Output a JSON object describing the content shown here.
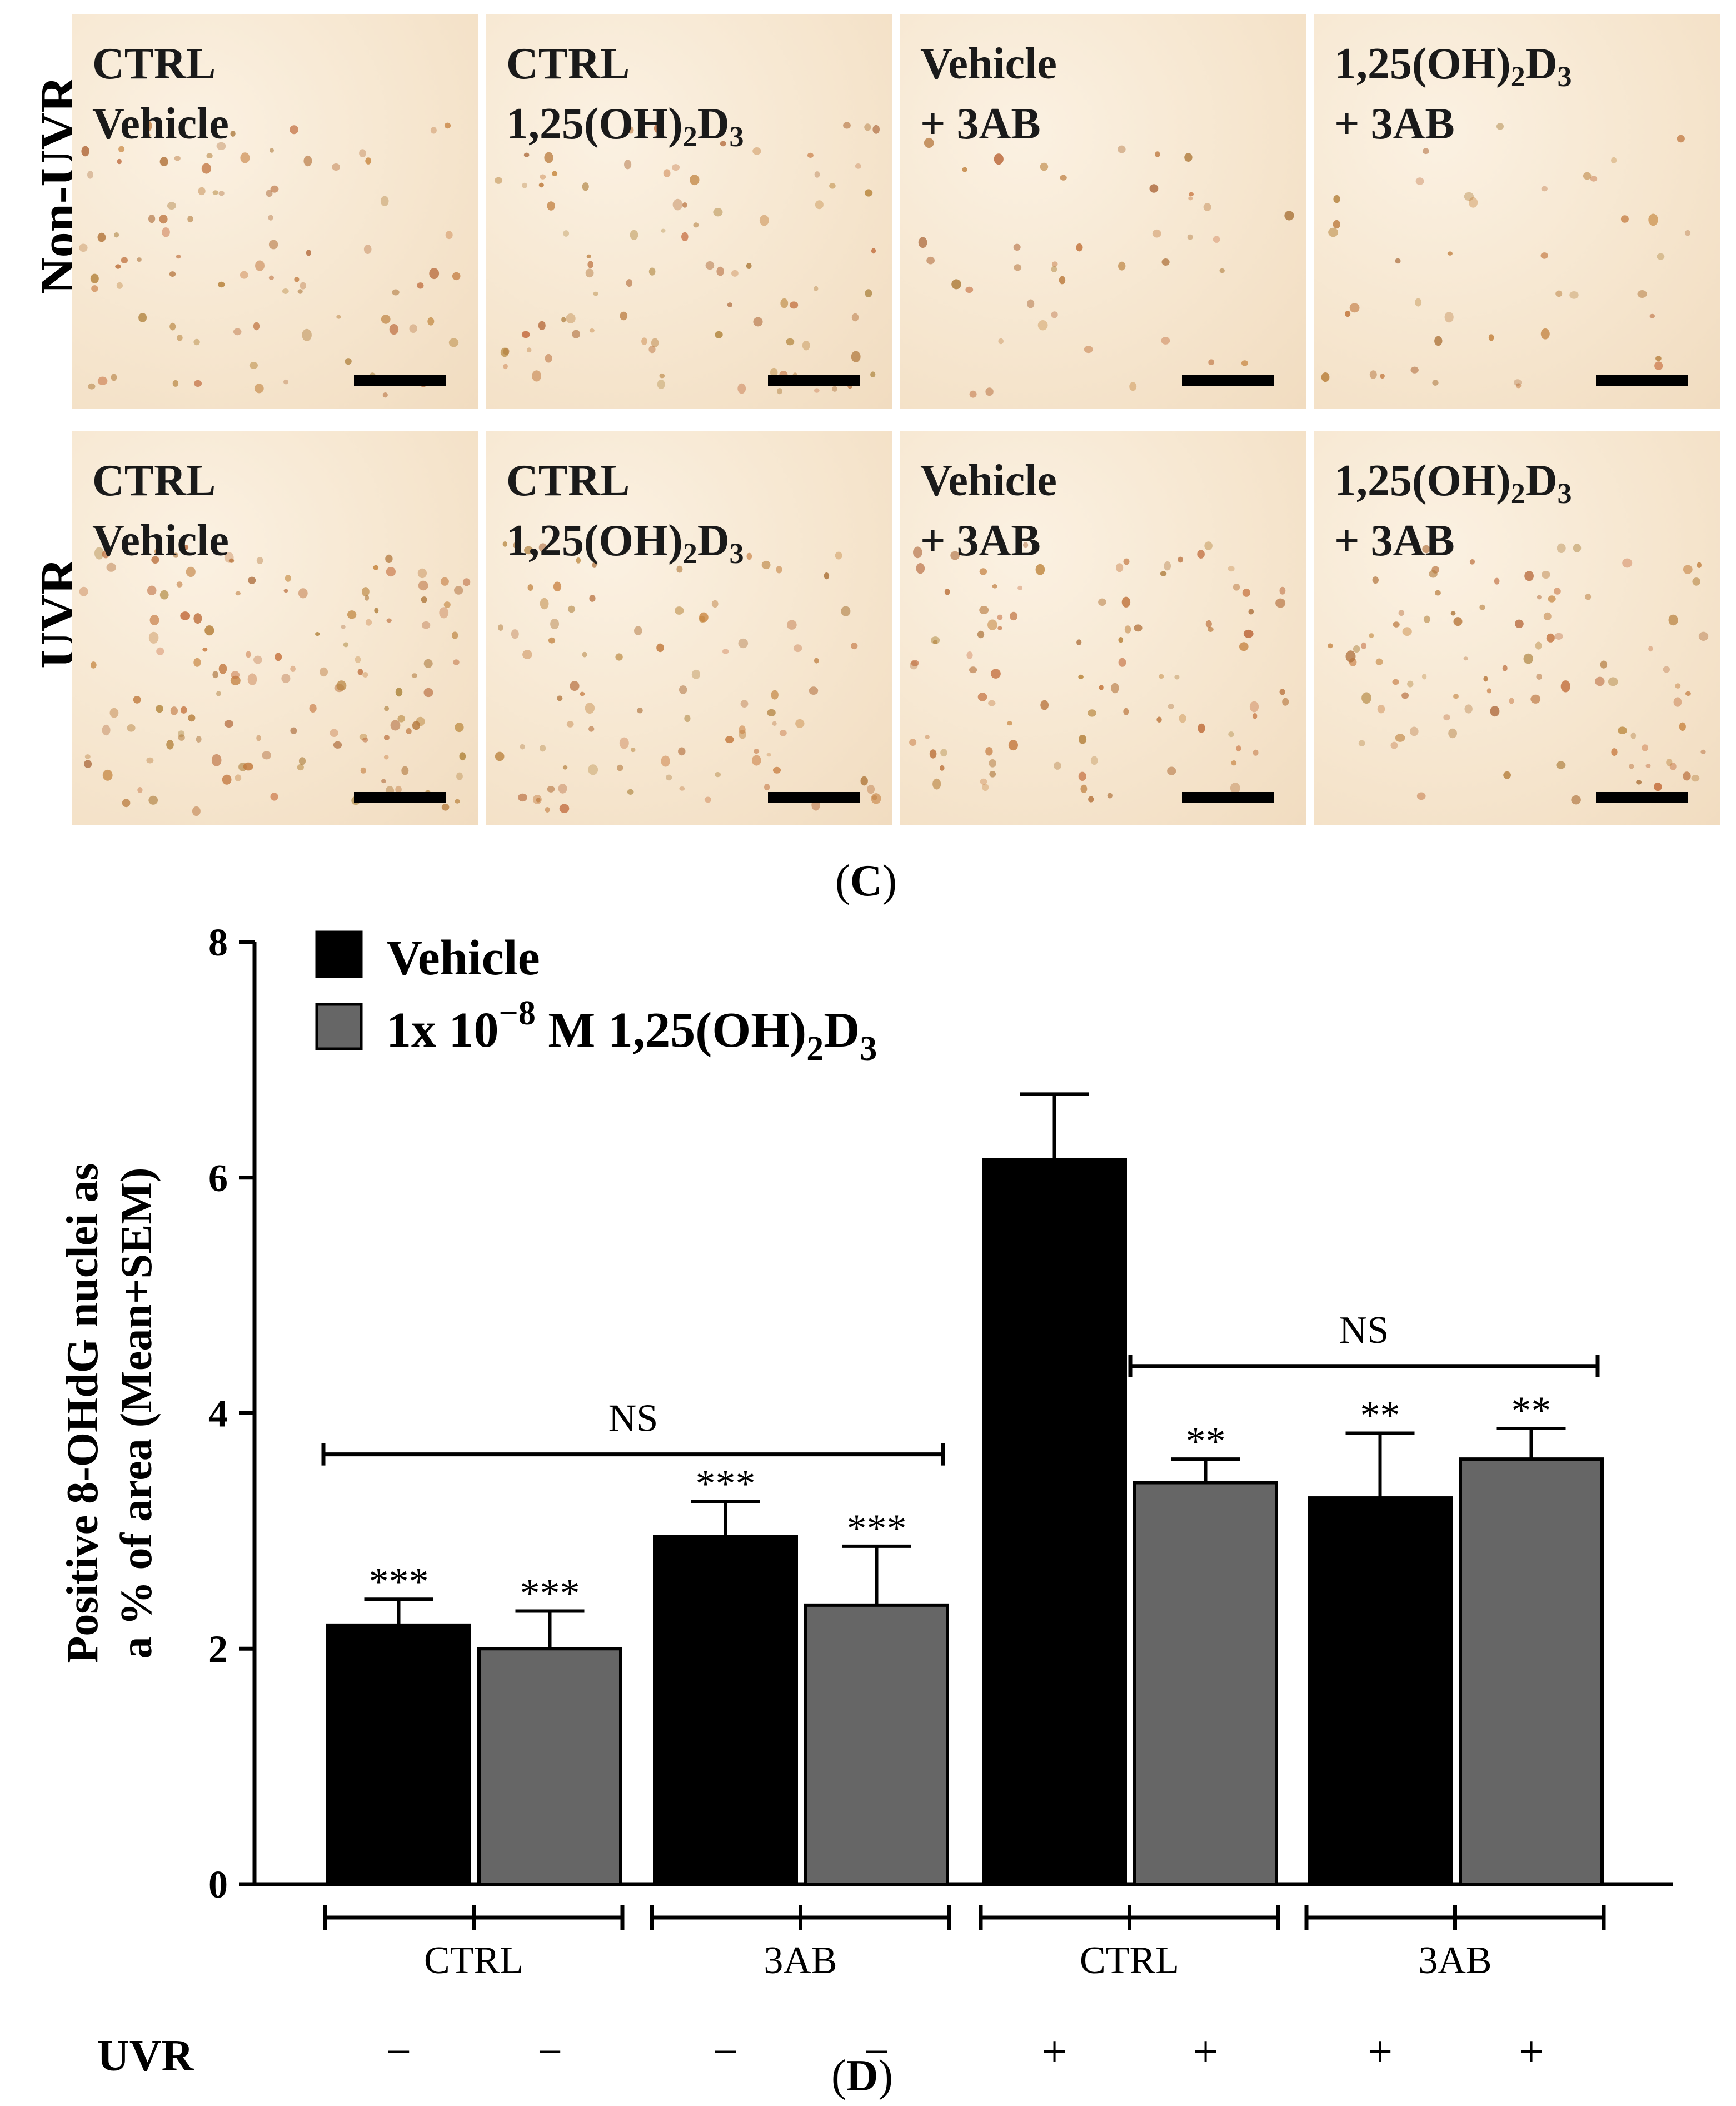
{
  "panel_c": {
    "row_labels": [
      "Non-UVR",
      "UVR"
    ],
    "tiles": [
      {
        "line1": "CTRL",
        "line2": "Vehicle",
        "line2_sub": "",
        "line2_after": ""
      },
      {
        "line1": "CTRL",
        "line2": "1,25(OH)",
        "line2_sub": "2",
        "line2_after": "D",
        "line2_sub2": "3"
      },
      {
        "line1": "Vehicle",
        "line2": "+ 3AB",
        "line2_sub": "",
        "line2_after": ""
      },
      {
        "line1": "1,25(OH)",
        "line1_sub": "2",
        "line1_after": "D",
        "line1_sub2": "3",
        "line2": "+ 3AB"
      },
      {
        "line1": "CTRL",
        "line2": "Vehicle"
      },
      {
        "line1": "CTRL",
        "line2": "1,25(OH)",
        "line2_sub": "2",
        "line2_after": "D",
        "line2_sub2": "3"
      },
      {
        "line1": "Vehicle",
        "line2": "+ 3AB"
      },
      {
        "line1": "1,25(OH)",
        "line1_sub": "2",
        "line1_after": "D",
        "line1_sub2": "3",
        "line2": "+ 3AB"
      }
    ],
    "letter": "C"
  },
  "chart_data": {
    "type": "bar",
    "ylabel_line1": "Positive 8-OHdG nuclei as",
    "ylabel_line2": "a % of area (Mean+SEM)",
    "ylim": [
      0,
      8
    ],
    "yticks": [
      "0",
      "2",
      "4",
      "6",
      "8"
    ],
    "legend": {
      "placement": "top-left",
      "entries": [
        {
          "label": "Vehicle",
          "color": "#000000"
        },
        {
          "label": "1x 10",
          "sup": "−8",
          "label_after": " M 1,25(OH)",
          "sub": "2",
          "label_end": "D",
          "sub2": "3",
          "color": "#666666"
        }
      ]
    },
    "groups": [
      "CTRL",
      "3AB",
      "CTRL",
      "3AB"
    ],
    "uvr_label": "UVR",
    "uvr": [
      "−",
      "−",
      "−",
      "−",
      "+",
      "+",
      "+",
      "+"
    ],
    "series": [
      {
        "name": "Vehicle",
        "color": "#000000",
        "values": [
          2.2,
          2.95,
          6.15,
          3.28
        ],
        "errors": [
          0.22,
          0.3,
          0.56,
          0.55
        ],
        "stars": [
          "***",
          "***",
          "",
          "**"
        ]
      },
      {
        "name": "1x 10−8 M 1,25(OH)2D3",
        "color": "#666666",
        "values": [
          2.0,
          2.37,
          3.41,
          3.61
        ],
        "errors": [
          0.32,
          0.5,
          0.2,
          0.26
        ],
        "stars": [
          "***",
          "***",
          "**",
          "**"
        ]
      }
    ],
    "brackets": [
      {
        "label": "NS",
        "from_bar": 0,
        "to_bar": 3,
        "y": 3.65
      },
      {
        "label": "NS",
        "from_bar": 5,
        "to_bar": 7,
        "y": 4.4
      }
    ],
    "letter": "D"
  }
}
